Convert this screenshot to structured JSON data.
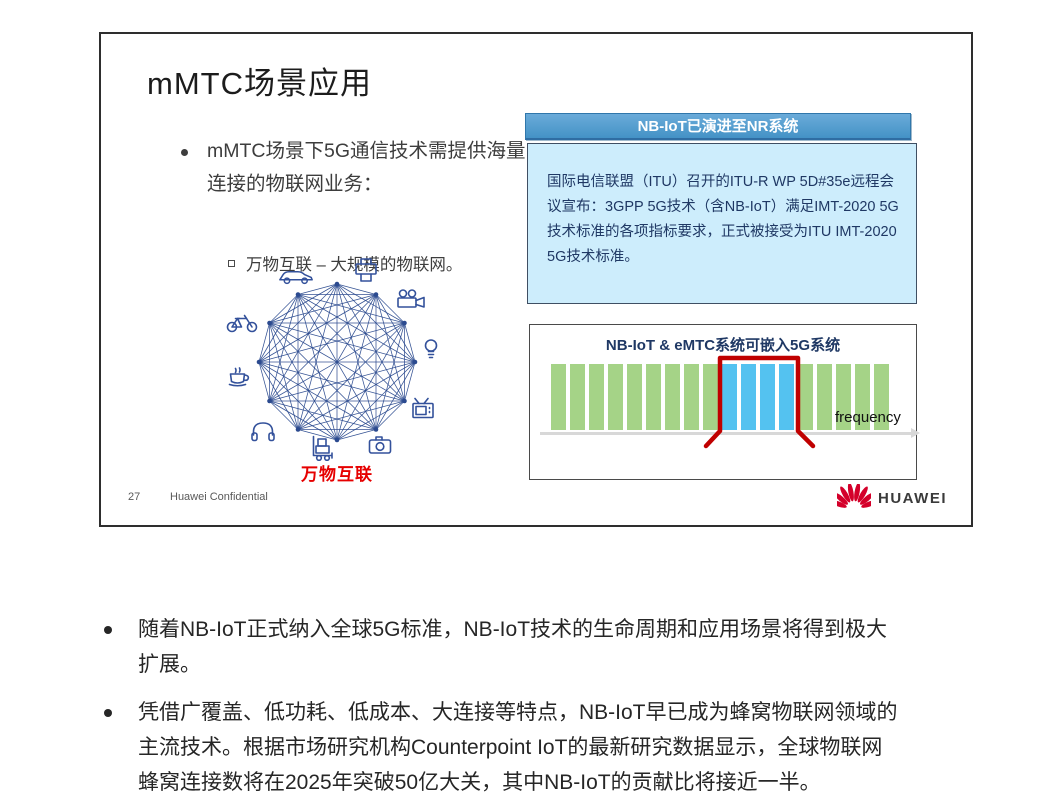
{
  "slide": {
    "title": "mMTC场景应用",
    "bullet": {
      "lines": [
        "mMTC场景下5G通信技术需提供海量",
        "连接的物联网业务："
      ]
    },
    "sub_bullet": "万物互联 – 大规模的物联网。",
    "mesh_caption": "万物互联",
    "footer": {
      "page_number": "27",
      "confidential": "Huawei Confidential",
      "logo_text": "HUAWEI"
    },
    "right_panel": {
      "header": "NB-IoT已演进至NR系统",
      "info_lines": [
        "国际电信联盟（ITU）召开的ITU-R WP 5D#35e远程会",
        "议宣布：3GPP 5G技术（含NB-IoT）满足IMT-2020 5G",
        "技术标准的各项指标要求，正式被接受为ITU IMT-2020",
        "5G技术标准。"
      ]
    }
  },
  "chart_data": {
    "type": "bar",
    "title": "NB-IoT & eMTC系统可嵌入5G系统",
    "xlabel": "frequency",
    "description": "18 equal-height spectrum blocks along a frequency axis; blocks 10–13 are blue (NB-IoT & eMTC carriers embedded inside the 5G band, outlined by a red bracket), all other blocks are green 5G carriers",
    "bar_count": 18,
    "blue_indices": [
      9,
      10,
      11,
      12
    ],
    "colors": {
      "green": "#a5d387",
      "blue": "#54c2f0",
      "bracket": "#c00000",
      "axis": "#d8d8d8"
    }
  },
  "notes": {
    "bullets": [
      {
        "lines": [
          "随着NB-IoT正式纳入全球5G标准，NB-IoT技术的生命周期和应用场景将得到极大",
          "扩展。"
        ]
      },
      {
        "lines": [
          "凭借广覆盖、低功耗、低成本、大连接等特点，NB-IoT早已成为蜂窝物联网领域的",
          "主流技术。根据市场研究机构Counterpoint IoT的最新研究数据显示，全球物联网",
          "蜂窝连接数将在2025年突破50亿大关，其中NB-IoT的贡献比将接近一半。"
        ]
      }
    ]
  },
  "colors": {
    "header_blue": "#4492c6",
    "info_bg": "#cdedfc",
    "info_text": "#1f3864",
    "caption_red": "#e60000",
    "mesh_blue": "#2b4a8f",
    "huawei_red": "#d4002a"
  }
}
